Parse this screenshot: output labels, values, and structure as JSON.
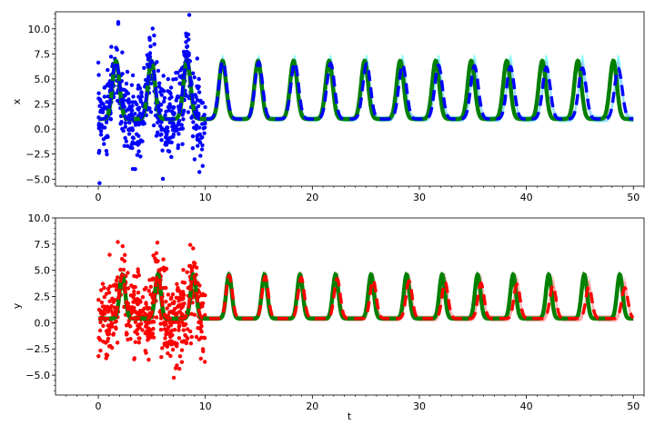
{
  "chart_data": [
    {
      "type": "line",
      "ylabel": "x",
      "xlabel": "",
      "xlim": [
        -4,
        51
      ],
      "ylim": [
        -5.7,
        11.7
      ],
      "xticks": [
        0,
        10,
        20,
        30,
        40,
        50
      ],
      "yticks": [
        -5.0,
        -2.5,
        0.0,
        2.5,
        5.0,
        7.5,
        10.0
      ],
      "ytick_labels": [
        "−5.0",
        "−2.5",
        "0.0",
        "2.5",
        "5.0",
        "7.5",
        "10.0"
      ],
      "grid": false,
      "colors": {
        "data": "#0000ff",
        "truth": "#008000",
        "forecast": "#0000ff",
        "band_outer": "#00ffff",
        "band_inner": "#aaaaff"
      },
      "series": [
        {
          "kind": "scatter",
          "color": "#0000ff",
          "x_range": [
            0,
            10
          ],
          "note": "noisy observations around the true oscillation"
        },
        {
          "kind": "line-solid",
          "color": "#008000",
          "x": [
            0,
            1.6,
            2.6,
            4.3,
            5.3,
            7.0,
            8.8,
            9.8,
            11.8,
            12.8,
            15.1,
            16.1,
            18.5,
            19.5,
            21.8,
            22.8,
            25.2,
            26.2,
            28.5,
            29.5,
            31.8,
            32.8,
            35.2,
            36.2,
            38.5,
            39.5,
            41.9,
            42.9,
            45.2,
            46.2,
            48.5,
            49.5,
            50
          ],
          "y": [
            3.0,
            6.8,
            1.0,
            6.8,
            1.0,
            6.8,
            1.0,
            1.3,
            6.8,
            1.0,
            6.8,
            1.0,
            6.8,
            1.0,
            6.8,
            1.0,
            6.8,
            1.0,
            6.8,
            1.0,
            6.8,
            1.0,
            6.8,
            1.0,
            6.8,
            1.0,
            6.8,
            1.0,
            6.8,
            1.0,
            6.8,
            1.0,
            1.2
          ]
        },
        {
          "kind": "line-dashed",
          "color": "#0000ff",
          "x": [
            0,
            1.7,
            2.7,
            4.4,
            5.4,
            7.1,
            8.9,
            9.9,
            11.8,
            12.8,
            15.1,
            16.1,
            18.6,
            19.6,
            22.0,
            23.0,
            25.4,
            26.4,
            28.8,
            29.8,
            32.2,
            33.2,
            35.6,
            36.6,
            39.0,
            40.0,
            42.4,
            43.4,
            45.9,
            46.9,
            49.2,
            50
          ],
          "y": [
            3.0,
            6.5,
            1.1,
            6.5,
            1.1,
            6.0,
            1.3,
            1.4,
            6.8,
            1.0,
            6.8,
            1.0,
            6.7,
            1.0,
            6.6,
            1.0,
            6.4,
            1.0,
            6.4,
            1.0,
            6.2,
            1.0,
            6.2,
            1.0,
            6.0,
            1.0,
            6.0,
            1.0,
            6.0,
            1.0,
            6.0,
            2.0
          ]
        }
      ]
    },
    {
      "type": "line",
      "ylabel": "y",
      "xlabel": "t",
      "xlim": [
        -4,
        51
      ],
      "ylim": [
        -6.9,
        10.0
      ],
      "xticks": [
        0,
        10,
        20,
        30,
        40,
        50
      ],
      "yticks": [
        -5.0,
        -2.5,
        0.0,
        2.5,
        5.0,
        7.5,
        10.0
      ],
      "ytick_labels": [
        "−5.0",
        "−2.5",
        "0.0",
        "2.5",
        "5.0",
        "7.5",
        "10.0"
      ],
      "grid": false,
      "colors": {
        "data": "#ff0000",
        "truth": "#008000",
        "forecast": "#ff0000",
        "band_outer": "#ffc0c0",
        "band_inner": "#ff8080"
      },
      "series": [
        {
          "kind": "scatter",
          "color": "#ff0000",
          "x_range": [
            0,
            10
          ],
          "note": "noisy observations around the true oscillation"
        },
        {
          "kind": "line-solid",
          "color": "#008000",
          "x_note": "peaks lag x-series peaks by ~0.6",
          "peak": 4.6,
          "trough": 0.4
        },
        {
          "kind": "line-dashed",
          "color": "#ff0000",
          "peak_decay": [
            4.6,
            3.2
          ],
          "trough": 0.4
        }
      ]
    }
  ]
}
